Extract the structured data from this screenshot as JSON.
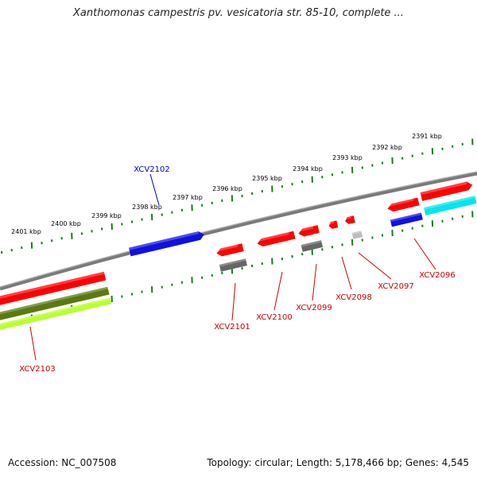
{
  "title": "Xanthomonas campestris pv. vesicatoria str. 85-10, complete ...",
  "footer": {
    "accession": "Accession: NC_007508",
    "summary": "Topology: circular; Length: 5,178,466 bp; Genes: 4,545"
  },
  "colors": {
    "tick": "#1e7a1e",
    "backbone": "#7a7a7a",
    "red": "#ff0000",
    "blue": "#1010e0",
    "cyan": "#00e5ee",
    "gray": "#666666",
    "lightgray": "#bdbdbd",
    "olive": "#5a7a10",
    "lime": "#b8ff30",
    "label_red": "#cc0000",
    "label_blue": "#0000cc"
  },
  "kbp_ticks": [
    "2391 kbp",
    "2392 kbp",
    "2393 kbp",
    "2394 kbp",
    "2395 kbp",
    "2396 kbp",
    "2397 kbp",
    "2398 kbp",
    "2399 kbp",
    "2400 kbp",
    "2401 kbp"
  ],
  "gene_labels": [
    {
      "text": "XCV2096",
      "color": "label_red"
    },
    {
      "text": "XCV2097",
      "color": "label_red"
    },
    {
      "text": "XCV2098",
      "color": "label_red"
    },
    {
      "text": "XCV2099",
      "color": "label_red"
    },
    {
      "text": "XCV2100",
      "color": "label_red"
    },
    {
      "text": "XCV2101",
      "color": "label_red"
    },
    {
      "text": "XCV2102",
      "color": "label_blue"
    },
    {
      "text": "XCV2103",
      "color": "label_red"
    }
  ]
}
